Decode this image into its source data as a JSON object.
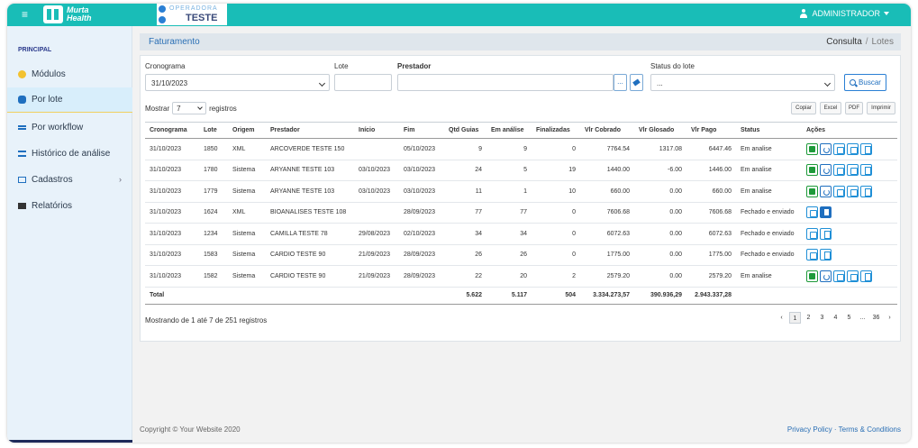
{
  "header": {
    "brand_line1": "Murta",
    "brand_line2": "Health",
    "operator_line1": "OPERADORA",
    "operator_line2": "TESTE",
    "user": "ADMINISTRADOR"
  },
  "sidebar": {
    "heading": "PRINCIPAL",
    "items": [
      {
        "label": "Módulos",
        "icon": "modules-icon"
      },
      {
        "label": "Por lote",
        "icon": "database-icon"
      },
      {
        "label": "Por workflow",
        "icon": "exchange-icon"
      },
      {
        "label": "Histórico de análise",
        "icon": "list-icon"
      },
      {
        "label": "Cadastros",
        "icon": "card-icon"
      },
      {
        "label": "Relatórios",
        "icon": "report-icon"
      }
    ]
  },
  "breadcrumb": {
    "title": "Faturamento",
    "crumb1": "Consulta",
    "separator": "/",
    "crumb2": "Lotes"
  },
  "filters": {
    "cronograma_label": "Cronograma",
    "cronograma_value": "31/10/2023",
    "lote_label": "Lote",
    "lote_value": "",
    "prestador_label": "Prestador",
    "prestador_value": "",
    "prestador_btn": "...",
    "status_label": "Status do lote",
    "status_value": "...",
    "search_label": "Buscar"
  },
  "table_controls": {
    "show_prefix": "Mostrar",
    "show_value": "7",
    "show_suffix": "registros",
    "copy": "Copiar",
    "excel": "Excel",
    "pdf": "PDF",
    "print": "Imprimir"
  },
  "table": {
    "columns": [
      "Cronograma",
      "Lote",
      "Origem",
      "Prestador",
      "Início",
      "Fim",
      "Qtd Guias",
      "Em análise",
      "Finalizadas",
      "Vlr Cobrado",
      "Vlr Glosado",
      "Vlr Pago",
      "Status",
      "Ações"
    ],
    "rows": [
      {
        "cronograma": "31/10/2023",
        "lote": "1850",
        "origem": "XML",
        "prestador": "ARCOVERDE TESTE 150",
        "inicio": "",
        "fim": "05/10/2023",
        "qtd": "9",
        "analise": "9",
        "finalizadas": "0",
        "cobrado": "7764.54",
        "glosado": "1317.08",
        "pago": "6447.46",
        "status": "Em analise",
        "actions": [
          "approve",
          "refresh",
          "edit",
          "edit",
          "doc"
        ]
      },
      {
        "cronograma": "31/10/2023",
        "lote": "1780",
        "origem": "Sistema",
        "prestador": "ARYANNE TESTE 103",
        "inicio": "03/10/2023",
        "fim": "03/10/2023",
        "qtd": "24",
        "analise": "5",
        "finalizadas": "19",
        "cobrado": "1440.00",
        "glosado": "-6.00",
        "pago": "1446.00",
        "status": "Em analise",
        "actions": [
          "approve",
          "refresh",
          "edit",
          "edit",
          "doc"
        ]
      },
      {
        "cronograma": "31/10/2023",
        "lote": "1779",
        "origem": "Sistema",
        "prestador": "ARYANNE TESTE 103",
        "inicio": "03/10/2023",
        "fim": "03/10/2023",
        "qtd": "11",
        "analise": "1",
        "finalizadas": "10",
        "cobrado": "660.00",
        "glosado": "0.00",
        "pago": "660.00",
        "status": "Em analise",
        "actions": [
          "approve",
          "refresh",
          "edit",
          "edit",
          "doc"
        ]
      },
      {
        "cronograma": "31/10/2023",
        "lote": "1624",
        "origem": "XML",
        "prestador": "BIOANALISES TESTE 108",
        "inicio": "",
        "fim": "28/09/2023",
        "qtd": "77",
        "analise": "77",
        "finalizadas": "0",
        "cobrado": "7606.68",
        "glosado": "0.00",
        "pago": "7606.68",
        "status": "Fechado e enviado",
        "actions": [
          "edit",
          "doc-filled"
        ]
      },
      {
        "cronograma": "31/10/2023",
        "lote": "1234",
        "origem": "Sistema",
        "prestador": "CAMILLA TESTE 78",
        "inicio": "29/08/2023",
        "fim": "02/10/2023",
        "qtd": "34",
        "analise": "34",
        "finalizadas": "0",
        "cobrado": "6072.63",
        "glosado": "0.00",
        "pago": "6072.63",
        "status": "Fechado e enviado",
        "actions": [
          "edit",
          "doc"
        ]
      },
      {
        "cronograma": "31/10/2023",
        "lote": "1583",
        "origem": "Sistema",
        "prestador": "CARDIO TESTE 90",
        "inicio": "21/09/2023",
        "fim": "28/09/2023",
        "qtd": "26",
        "analise": "26",
        "finalizadas": "0",
        "cobrado": "1775.00",
        "glosado": "0.00",
        "pago": "1775.00",
        "status": "Fechado e enviado",
        "actions": [
          "edit",
          "doc"
        ]
      },
      {
        "cronograma": "31/10/2023",
        "lote": "1582",
        "origem": "Sistema",
        "prestador": "CARDIO TESTE 90",
        "inicio": "21/09/2023",
        "fim": "28/09/2023",
        "qtd": "22",
        "analise": "20",
        "finalizadas": "2",
        "cobrado": "2579.20",
        "glosado": "0.00",
        "pago": "2579.20",
        "status": "Em analise",
        "actions": [
          "approve",
          "refresh",
          "edit",
          "edit",
          "doc"
        ]
      }
    ],
    "total": {
      "label": "Total",
      "qtd": "5.622",
      "analise": "5.117",
      "finalizadas": "504",
      "cobrado": "3.334.273,57",
      "glosado": "390.936,29",
      "pago": "2.943.337,28"
    }
  },
  "pagination": {
    "info": "Mostrando de 1 até 7 de 251 registros",
    "prev": "‹",
    "pages": [
      "1",
      "2",
      "3",
      "4",
      "5",
      "...",
      "36"
    ],
    "next": "›"
  },
  "footer": {
    "copyright": "Copyright © Your Website 2020",
    "links": "Privacy Policy · Terms & Conditions"
  }
}
